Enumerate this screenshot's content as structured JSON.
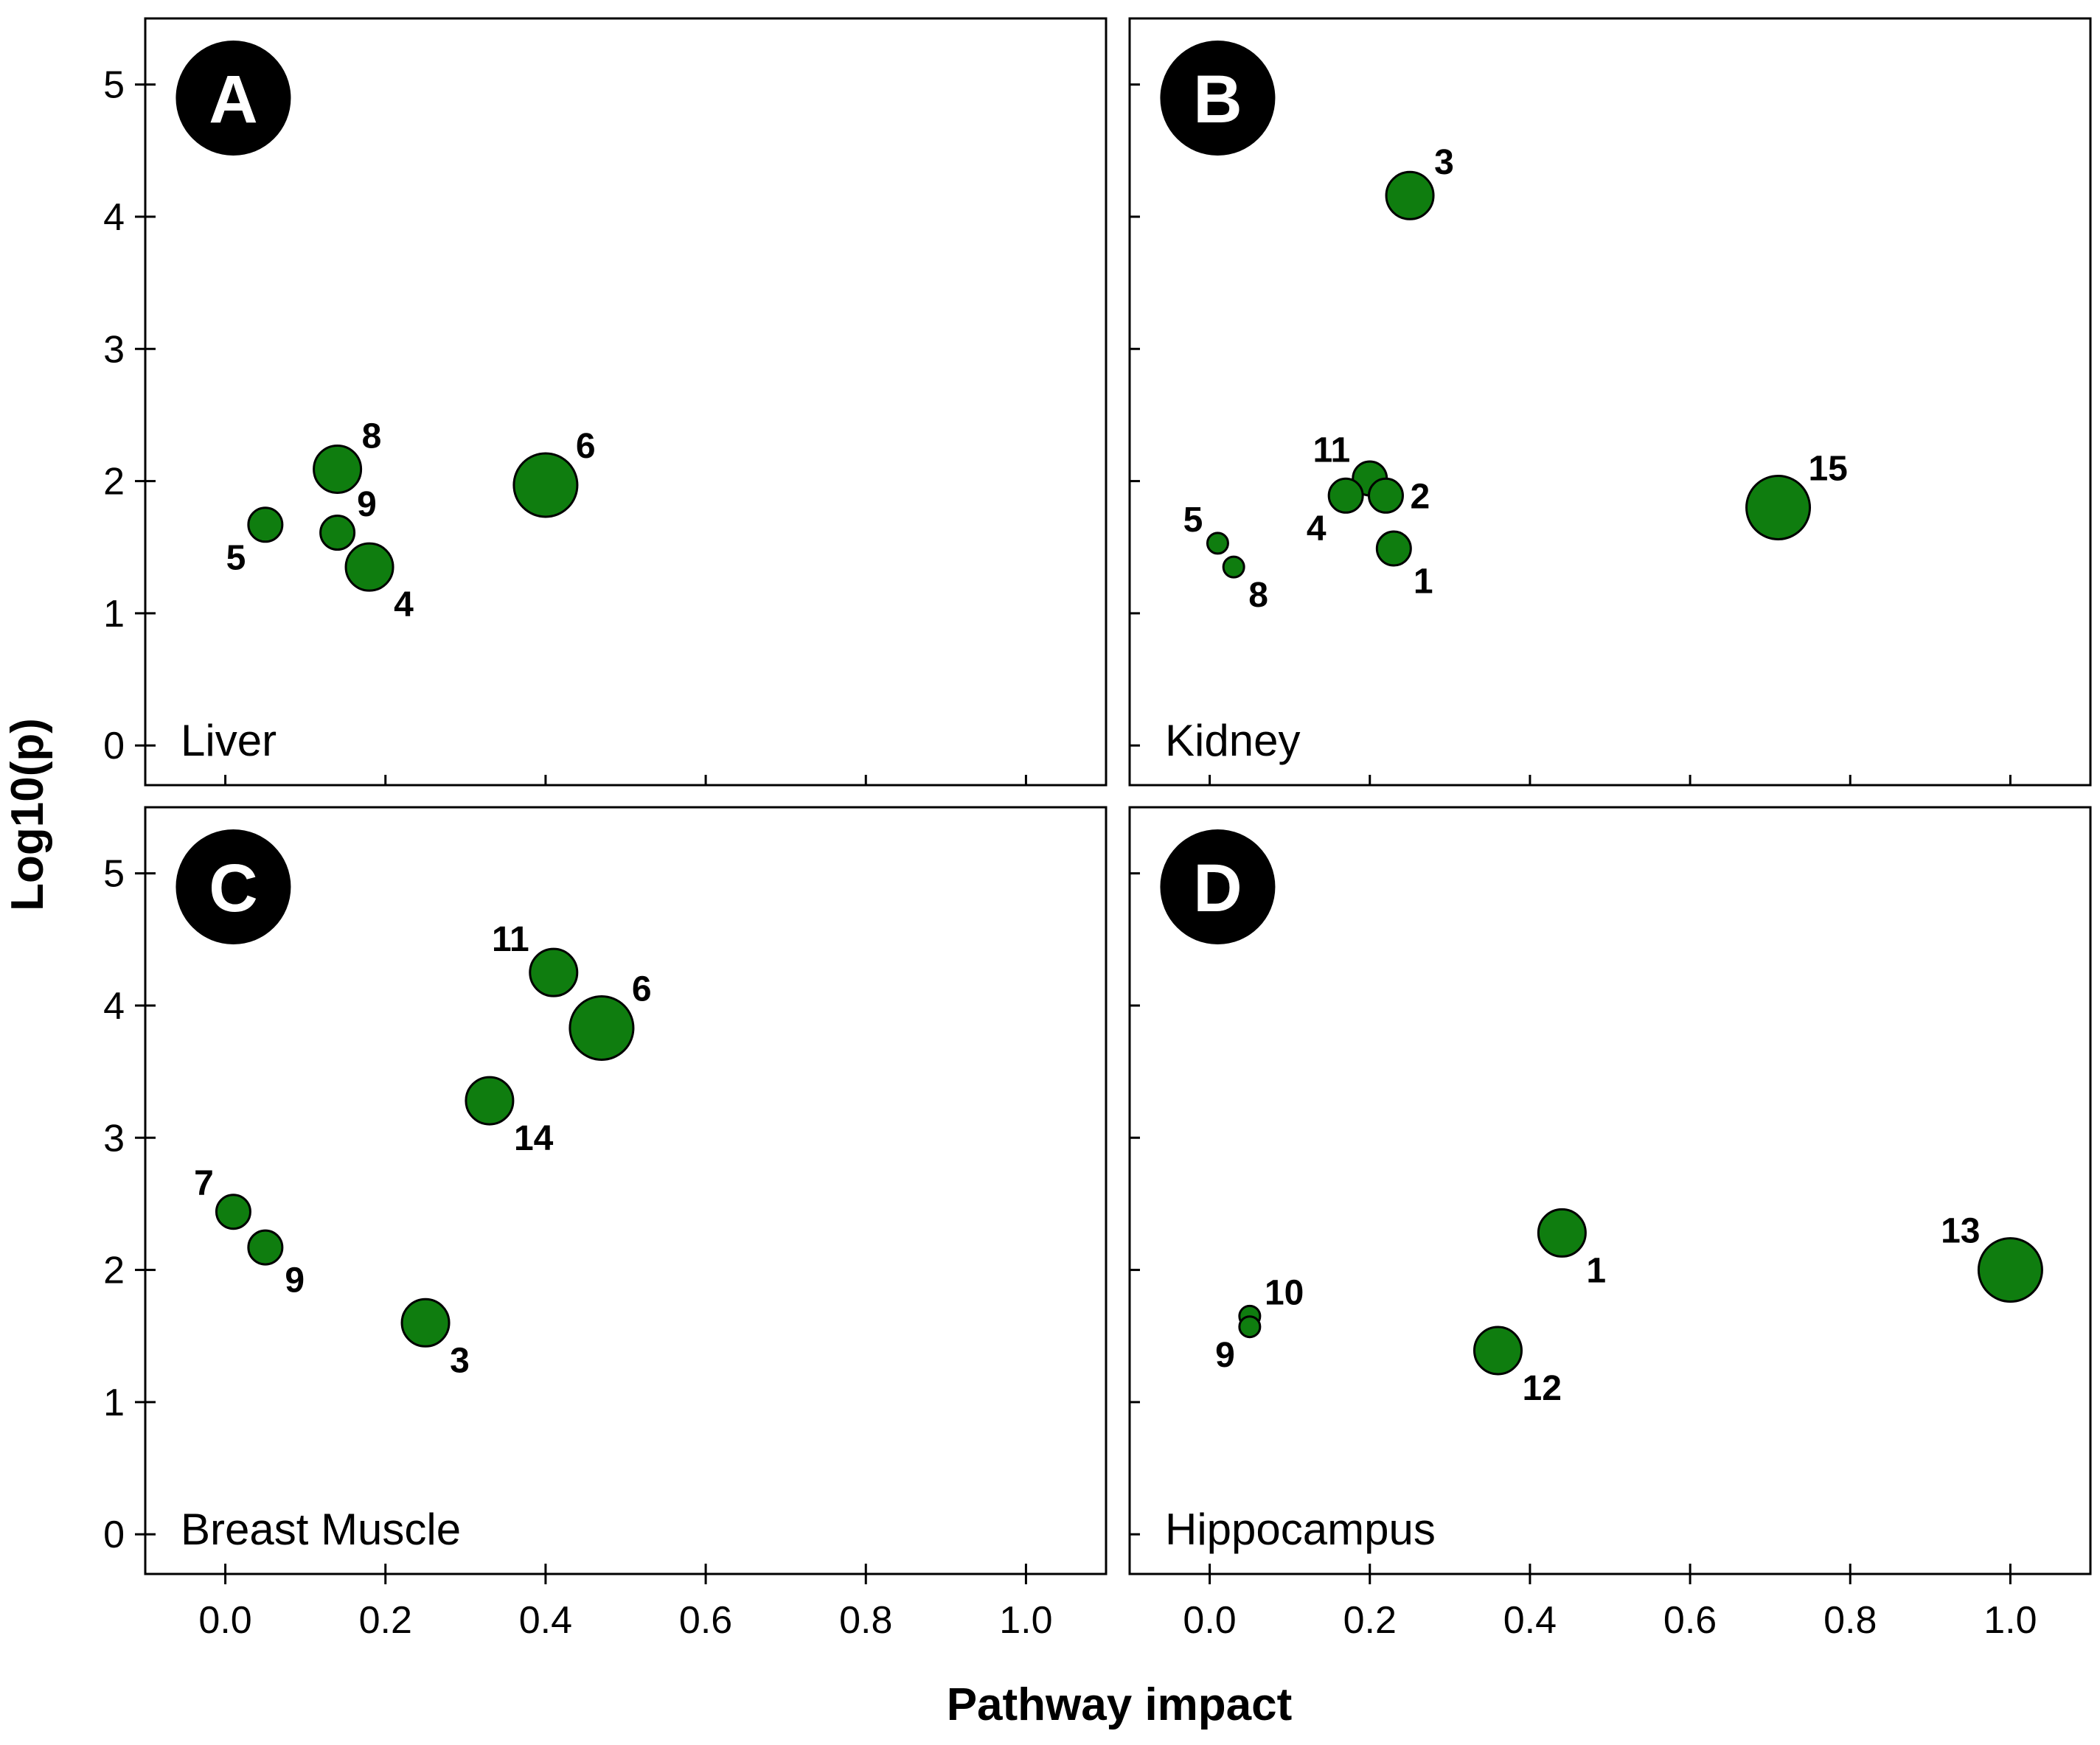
{
  "figure": {
    "xlabel": "Pathway impact",
    "ylabel": "Log10(p)"
  },
  "colors": {
    "point_fill": "#0f7d0f",
    "point_stroke": "#000000",
    "badge_fill": "#000000",
    "badge_text": "#ffffff"
  },
  "chart_data": [
    {
      "type": "scatter",
      "panel": "A",
      "title": "Liver",
      "xlabel": "Pathway impact",
      "ylabel": "Log10(p)",
      "xlim": [
        -0.1,
        1.1
      ],
      "ylim": [
        -0.3,
        5.5
      ],
      "xticks": [
        "0.0",
        "0.2",
        "0.4",
        "0.6",
        "0.8",
        "1.0"
      ],
      "yticks": [
        "0",
        "1",
        "2",
        "3",
        "4",
        "5"
      ],
      "points": [
        {
          "label": "5",
          "x": 0.05,
          "y": 1.67,
          "size": "small",
          "label_pos": "bottom-left"
        },
        {
          "label": "8",
          "x": 0.14,
          "y": 2.09,
          "size": "medium",
          "label_pos": "top-right"
        },
        {
          "label": "9",
          "x": 0.14,
          "y": 1.61,
          "size": "small",
          "label_pos": "top-right"
        },
        {
          "label": "4",
          "x": 0.18,
          "y": 1.35,
          "size": "medium",
          "label_pos": "bottom-right"
        },
        {
          "label": "6",
          "x": 0.4,
          "y": 1.97,
          "size": "large",
          "label_pos": "top-right"
        }
      ]
    },
    {
      "type": "scatter",
      "panel": "B",
      "title": "Kidney",
      "xlabel": "Pathway impact",
      "ylabel": "Log10(p)",
      "xlim": [
        -0.1,
        1.1
      ],
      "ylim": [
        -0.3,
        5.5
      ],
      "xticks": [
        "0.0",
        "0.2",
        "0.4",
        "0.6",
        "0.8",
        "1.0"
      ],
      "yticks": [
        "0",
        "1",
        "2",
        "3",
        "4",
        "5"
      ],
      "points": [
        {
          "label": "3",
          "x": 0.25,
          "y": 4.16,
          "size": "medium",
          "label_pos": "top-right"
        },
        {
          "label": "11",
          "x": 0.2,
          "y": 2.02,
          "size": "small",
          "label_pos": "top-left"
        },
        {
          "label": "2",
          "x": 0.22,
          "y": 1.89,
          "size": "small",
          "label_pos": "right"
        },
        {
          "label": "4",
          "x": 0.17,
          "y": 1.89,
          "size": "small",
          "label_pos": "bottom-left"
        },
        {
          "label": "1",
          "x": 0.23,
          "y": 1.49,
          "size": "small",
          "label_pos": "bottom-right"
        },
        {
          "label": "5",
          "x": 0.01,
          "y": 1.53,
          "size": "tiny",
          "label_pos": "top-left"
        },
        {
          "label": "8",
          "x": 0.03,
          "y": 1.35,
          "size": "tiny",
          "label_pos": "bottom-right"
        },
        {
          "label": "15",
          "x": 0.71,
          "y": 1.8,
          "size": "large",
          "label_pos": "top-right"
        }
      ]
    },
    {
      "type": "scatter",
      "panel": "C",
      "title": "Breast Muscle",
      "xlabel": "Pathway impact",
      "ylabel": "Log10(p)",
      "xlim": [
        -0.1,
        1.1
      ],
      "ylim": [
        -0.3,
        5.5
      ],
      "xticks": [
        "0.0",
        "0.2",
        "0.4",
        "0.6",
        "0.8",
        "1.0"
      ],
      "yticks": [
        "0",
        "1",
        "2",
        "3",
        "4",
        "5"
      ],
      "points": [
        {
          "label": "11",
          "x": 0.41,
          "y": 4.25,
          "size": "medium",
          "label_pos": "top-left"
        },
        {
          "label": "6",
          "x": 0.47,
          "y": 3.83,
          "size": "large",
          "label_pos": "top-right"
        },
        {
          "label": "14",
          "x": 0.33,
          "y": 3.28,
          "size": "medium",
          "label_pos": "bottom-right"
        },
        {
          "label": "7",
          "x": 0.01,
          "y": 2.44,
          "size": "small",
          "label_pos": "top-left"
        },
        {
          "label": "9",
          "x": 0.05,
          "y": 2.17,
          "size": "small",
          "label_pos": "bottom-right"
        },
        {
          "label": "3",
          "x": 0.25,
          "y": 1.6,
          "size": "medium",
          "label_pos": "bottom-right"
        }
      ]
    },
    {
      "type": "scatter",
      "panel": "D",
      "title": "Hippocampus",
      "xlabel": "Pathway impact",
      "ylabel": "Log10(p)",
      "xlim": [
        -0.1,
        1.1
      ],
      "ylim": [
        -0.3,
        5.5
      ],
      "xticks": [
        "0.0",
        "0.2",
        "0.4",
        "0.6",
        "0.8",
        "1.0"
      ],
      "yticks": [
        "0",
        "1",
        "2",
        "3",
        "4",
        "5"
      ],
      "points": [
        {
          "label": "1",
          "x": 0.44,
          "y": 2.28,
          "size": "medium",
          "label_pos": "bottom-right"
        },
        {
          "label": "13",
          "x": 1.0,
          "y": 2.0,
          "size": "large",
          "label_pos": "top-left"
        },
        {
          "label": "10",
          "x": 0.05,
          "y": 1.65,
          "size": "tiny",
          "label_pos": "top-right"
        },
        {
          "label": "9",
          "x": 0.05,
          "y": 1.57,
          "size": "tiny",
          "label_pos": "bottom-left"
        },
        {
          "label": "12",
          "x": 0.36,
          "y": 1.39,
          "size": "medium",
          "label_pos": "bottom-right"
        }
      ]
    }
  ]
}
